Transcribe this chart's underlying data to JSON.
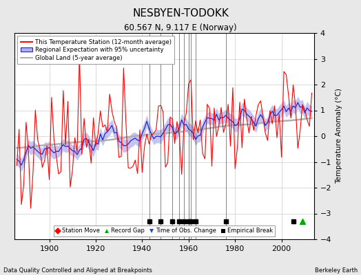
{
  "title": "NESBYEN-TODOKK",
  "subtitle": "60.567 N, 9.117 E (Norway)",
  "ylabel": "Temperature Anomaly (°C)",
  "xlabel_left": "Data Quality Controlled and Aligned at Breakpoints",
  "xlabel_right": "Berkeley Earth",
  "ylim": [
    -4,
    4
  ],
  "xlim_start": 1885,
  "xlim_end": 2014,
  "xticks": [
    1900,
    1920,
    1940,
    1960,
    1980,
    2000
  ],
  "yticks": [
    -4,
    -3,
    -2,
    -1,
    0,
    1,
    2,
    3,
    4
  ],
  "bg_color": "#e8e8e8",
  "plot_bg_color": "#ffffff",
  "grid_color": "#cccccc",
  "station_line_color": "#ff0000",
  "regional_line_color": "#2222cc",
  "uncertainty_color": "#b0b0ee",
  "global_land_color": "#b0b0b0",
  "empirical_breaks": [
    1943,
    1948,
    1953,
    1956,
    1958,
    1960,
    1961,
    1963,
    1976,
    2005
  ],
  "record_gaps": [
    2009
  ],
  "vertical_lines": [
    1943,
    1948,
    1953,
    1956,
    1958,
    1960,
    1961,
    1963,
    1976
  ],
  "seed": 12345,
  "year_start": 1886,
  "year_end": 2013
}
